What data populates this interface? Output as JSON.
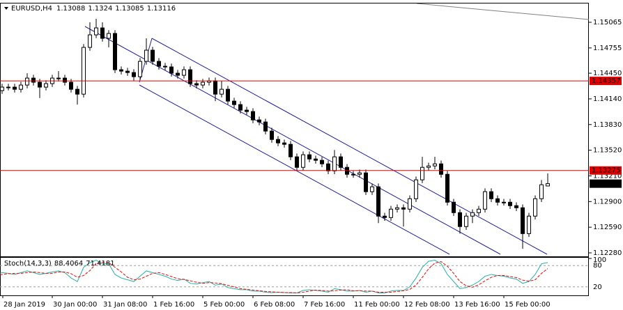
{
  "chart_data": [
    {
      "type": "candlestick",
      "title": "EURUSD,H4",
      "categories": [
        "28 Jan 2019",
        null,
        null,
        null,
        null,
        null,
        null,
        null,
        null,
        "30 Jan 00:00",
        null,
        null,
        null,
        null,
        null,
        null,
        null,
        "31 Jan 08:00",
        null,
        null,
        null,
        null,
        null,
        null,
        null,
        "1 Feb 16:00",
        null,
        null,
        null,
        null,
        null,
        null,
        null,
        "5 Feb 00:00",
        null,
        null,
        null,
        null,
        null,
        null,
        null,
        "6 Feb 08:00",
        null,
        null,
        null,
        null,
        null,
        null,
        null,
        "7 Feb 16:00",
        null,
        null,
        null,
        null,
        null,
        null,
        null,
        "11 Feb 00:00",
        null,
        null,
        null,
        null,
        null,
        null,
        null,
        "12 Feb 08:00",
        null,
        null,
        null,
        null,
        null,
        null,
        null,
        "13 Feb 16:00",
        null,
        null,
        null,
        null,
        null,
        null,
        null,
        "15 Feb 00:00",
        null,
        null,
        null,
        null,
        null,
        null,
        null
      ],
      "open": [
        1.14256,
        1.1424,
        1.14282,
        1.14282,
        1.14256,
        1.14307,
        1.14391,
        1.14341,
        1.14282,
        1.14324,
        1.14391,
        1.14391,
        1.14341,
        1.14256,
        1.14197,
        1.14762,
        1.14913,
        1.14997,
        1.14871,
        1.1493,
        1.14492,
        1.14475,
        1.14458,
        1.14408,
        1.14593,
        1.14728,
        1.14593,
        1.14534,
        1.14526,
        1.1445,
        1.14425,
        1.14492,
        1.14324,
        1.14307,
        1.14341,
        1.14357,
        1.14197,
        1.14256,
        1.14113,
        1.14071,
        1.14004,
        1.13987,
        1.13886,
        1.13861,
        1.13751,
        1.1365,
        1.13608,
        1.13591,
        1.1344,
        1.13313,
        1.13465,
        1.13414,
        1.13398,
        1.13355,
        1.13271,
        1.1344,
        1.13313,
        1.13229,
        1.13229,
        1.13246,
        1.13019,
        1.13078,
        1.12724,
        1.12707,
        1.12808,
        1.12825,
        1.12808,
        1.12934,
        1.13162,
        1.13313,
        1.1333,
        1.13355,
        1.13229,
        1.12892,
        1.12766,
        1.12598,
        1.12724,
        1.12766,
        1.12808,
        1.13019,
        1.12934,
        1.12892,
        1.12892,
        1.1285,
        1.12825,
        1.12513,
        1.12724,
        1.12934,
        1.13088
      ],
      "high": [
        1.14296,
        1.14322,
        1.14322,
        1.14322,
        1.14347,
        1.1445,
        1.14431,
        1.14381,
        1.14364,
        1.14431,
        1.14475,
        1.14431,
        1.14381,
        1.14296,
        1.14802,
        1.15065,
        1.15107,
        1.15065,
        1.1497,
        1.1497,
        1.14532,
        1.14515,
        1.14498,
        1.14633,
        1.14871,
        1.14768,
        1.14633,
        1.14574,
        1.14566,
        1.1449,
        1.14532,
        1.14532,
        1.14364,
        1.14381,
        1.14397,
        1.14397,
        1.14357,
        1.14296,
        1.14153,
        1.14111,
        1.14044,
        1.14027,
        1.13926,
        1.13901,
        1.13791,
        1.1369,
        1.13648,
        1.13631,
        1.1348,
        1.13505,
        1.13505,
        1.13454,
        1.13438,
        1.13395,
        1.13522,
        1.1348,
        1.13353,
        1.13269,
        1.13286,
        1.13286,
        1.13118,
        1.13118,
        1.12764,
        1.12848,
        1.12865,
        1.12865,
        1.12974,
        1.13202,
        1.1344,
        1.1337,
        1.1344,
        1.13395,
        1.13269,
        1.12932,
        1.12806,
        1.12764,
        1.12806,
        1.12848,
        1.13059,
        1.13059,
        1.12974,
        1.12932,
        1.12932,
        1.1289,
        1.12865,
        1.12764,
        1.12974,
        1.1316,
        1.1324
      ],
      "low": [
        1.1415,
        1.142,
        1.14242,
        1.14216,
        1.14216,
        1.14267,
        1.14301,
        1.1415,
        1.14242,
        1.14284,
        1.14351,
        1.14301,
        1.14216,
        1.14071,
        1.14157,
        1.14722,
        1.14873,
        1.14831,
        1.14762,
        1.14452,
        1.14435,
        1.14418,
        1.14357,
        1.14368,
        1.14553,
        1.14553,
        1.14494,
        1.14486,
        1.1441,
        1.14385,
        1.14385,
        1.14284,
        1.14267,
        1.14267,
        1.14301,
        1.14113,
        1.14157,
        1.14073,
        1.14031,
        1.13964,
        1.13947,
        1.13846,
        1.13821,
        1.13711,
        1.1361,
        1.13568,
        1.13551,
        1.134,
        1.13273,
        1.13273,
        1.13374,
        1.13358,
        1.13315,
        1.13231,
        1.13231,
        1.13273,
        1.13189,
        1.13189,
        1.13189,
        1.12979,
        1.12979,
        1.1264,
        1.12667,
        1.12667,
        1.12768,
        1.12598,
        1.12768,
        1.12894,
        1.13122,
        1.13273,
        1.1329,
        1.13189,
        1.12852,
        1.12726,
        1.12513,
        1.12558,
        1.1264,
        1.12726,
        1.12768,
        1.12894,
        1.12852,
        1.12852,
        1.1281,
        1.12785,
        1.12329,
        1.12473,
        1.12684,
        1.12894,
        1.13085
      ],
      "close": [
        1.1424,
        1.14282,
        1.14282,
        1.14256,
        1.14307,
        1.14391,
        1.14341,
        1.14282,
        1.14324,
        1.14391,
        1.14391,
        1.14341,
        1.14256,
        1.14197,
        1.14762,
        1.14913,
        1.14997,
        1.14871,
        1.1493,
        1.14492,
        1.14475,
        1.14458,
        1.14408,
        1.14593,
        1.14728,
        1.14593,
        1.14534,
        1.14526,
        1.1445,
        1.14425,
        1.14492,
        1.14324,
        1.14307,
        1.14341,
        1.14357,
        1.14197,
        1.14256,
        1.14113,
        1.14071,
        1.14004,
        1.13987,
        1.13886,
        1.13861,
        1.13751,
        1.1365,
        1.13608,
        1.13591,
        1.1344,
        1.13313,
        1.13465,
        1.13414,
        1.13398,
        1.13355,
        1.13271,
        1.1344,
        1.13313,
        1.13229,
        1.13229,
        1.13246,
        1.13019,
        1.13078,
        1.12724,
        1.12707,
        1.12808,
        1.12825,
        1.12808,
        1.12934,
        1.13162,
        1.13313,
        1.1333,
        1.13355,
        1.13229,
        1.12892,
        1.12766,
        1.12598,
        1.12724,
        1.12766,
        1.12808,
        1.13019,
        1.12934,
        1.12892,
        1.12892,
        1.1285,
        1.12825,
        1.12513,
        1.12724,
        1.12934,
        1.13103,
        1.13116
      ],
      "ylim": [
        1.12238,
        1.15292
      ],
      "yticks": [
        1.15065,
        1.14755,
        {
          "value": 1.1445,
          "label": "1.14450"
        },
        {
          "value": 1.1414,
          "label": "1.14140"
        },
        {
          "value": 1.1383,
          "label": "1.13830"
        },
        {
          "value": 1.1352,
          "label": "1.13520"
        },
        {
          "value": 1.1321,
          "label": "1.13210"
        },
        {
          "value": 1.129,
          "label": "1.12900"
        },
        {
          "value": 1.1259,
          "label": "1.12590"
        },
        {
          "value": 1.1228,
          "label": "1.12280"
        }
      ],
      "hlines": [
        {
          "value": 1.14357,
          "color": "#e00000"
        },
        {
          "value": 1.13275,
          "color": "#e00000"
        }
      ],
      "bull_color": "#ffffff",
      "bear_color": "#000000",
      "current_price_color": "#000000"
    },
    {
      "type": "line",
      "title": "Stoch(14,3,3)",
      "series": [
        {
          "color": "#20b2aa",
          "dash": false,
          "values": [
            55,
            60,
            58,
            55,
            60,
            65,
            60,
            55,
            58,
            62,
            65,
            60,
            45,
            35,
            75,
            88,
            95,
            85,
            85,
            55,
            45,
            40,
            35,
            50,
            65,
            60,
            55,
            50,
            42,
            38,
            42,
            30,
            28,
            32,
            35,
            25,
            28,
            18,
            15,
            12,
            12,
            8,
            8,
            5,
            4,
            5,
            4,
            3,
            3,
            10,
            12,
            10,
            8,
            5,
            15,
            12,
            8,
            8,
            10,
            5,
            8,
            3,
            3,
            8,
            10,
            10,
            20,
            45,
            75,
            92,
            95,
            85,
            55,
            35,
            15,
            18,
            25,
            35,
            50,
            55,
            52,
            50,
            45,
            42,
            30,
            35,
            55,
            85,
            88.4064
          ]
        },
        {
          "color": "#ff0000",
          "dash": true,
          "values": [
            52,
            55,
            57,
            58,
            58,
            60,
            62,
            60,
            58,
            58,
            62,
            62,
            57,
            47,
            52,
            66,
            86,
            89,
            88,
            75,
            62,
            47,
            40,
            42,
            50,
            58,
            60,
            55,
            49,
            43,
            41,
            37,
            33,
            30,
            32,
            31,
            29,
            24,
            20,
            15,
            13,
            11,
            9,
            7,
            6,
            5,
            4,
            4,
            3,
            5,
            8,
            11,
            10,
            8,
            9,
            11,
            12,
            9,
            9,
            8,
            8,
            5,
            5,
            5,
            7,
            9,
            13,
            25,
            47,
            71,
            87,
            91,
            78,
            58,
            35,
            23,
            19,
            26,
            37,
            47,
            52,
            52,
            49,
            46,
            39,
            36,
            40,
            58,
            71.4181
          ]
        }
      ],
      "ylim": [
        0,
        100
      ],
      "yticks": [
        100
      ],
      "levels": [
        80,
        20
      ]
    }
  ]
}
